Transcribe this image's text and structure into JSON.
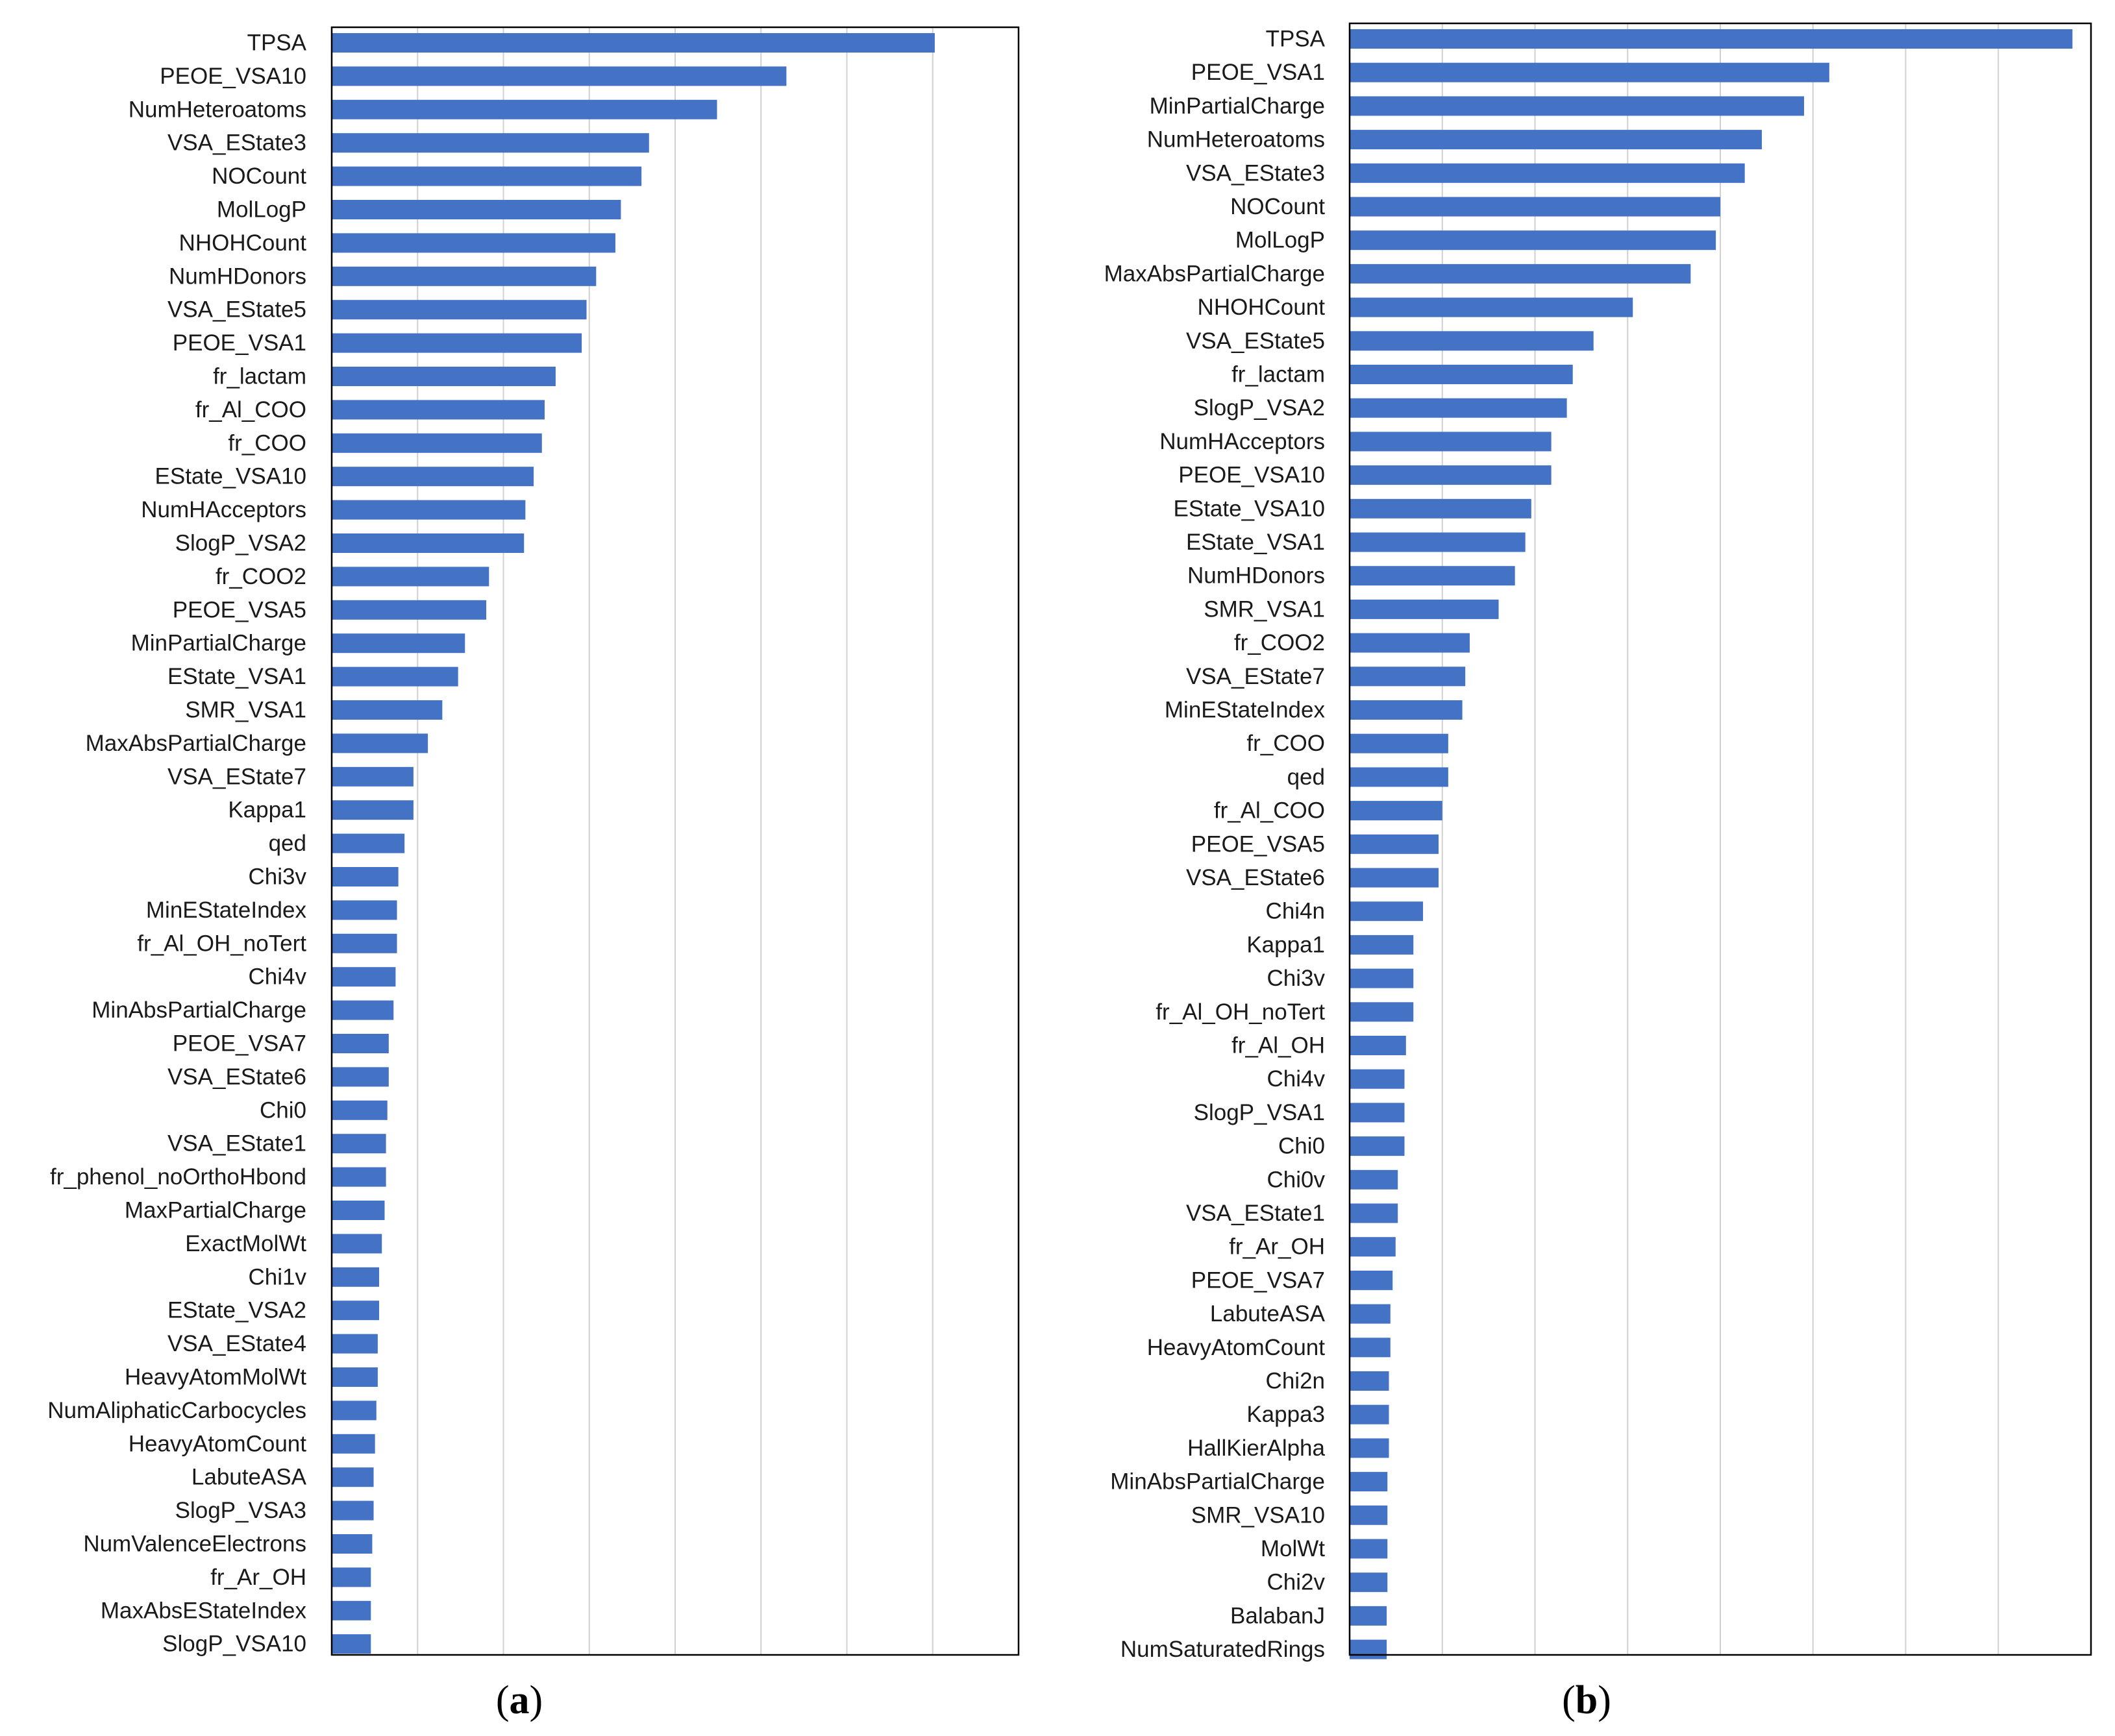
{
  "panels": [
    {
      "label_open": "(",
      "label_letter": "a",
      "label_close": ")"
    },
    {
      "label_open": "(",
      "label_letter": "b",
      "label_close": ")"
    }
  ],
  "colors": {
    "bar": "#4472c4",
    "grid": "#d0d0d0",
    "frame": "#000000"
  },
  "chart_data": [
    {
      "type": "bar",
      "orientation": "horizontal",
      "title": "",
      "xlabel": "",
      "ylabel": "",
      "xlim": [
        0,
        1
      ],
      "grid": "vertical",
      "categories": [
        "TPSA",
        "PEOE_VSA10",
        "NumHeteroatoms",
        "VSA_EState3",
        "NOCount",
        "MolLogP",
        "NHOHCount",
        "NumHDonors",
        "VSA_EState5",
        "PEOE_VSA1",
        "fr_lactam",
        "fr_Al_COO",
        "fr_COO",
        "EState_VSA10",
        "NumHAcceptors",
        "SlogP_VSA2",
        "fr_COO2",
        "PEOE_VSA5",
        "MinPartialCharge",
        "EState_VSA1",
        "SMR_VSA1",
        "MaxAbsPartialCharge",
        "VSA_EState7",
        "Kappa1",
        "qed",
        "Chi3v",
        "MinEStateIndex",
        "fr_Al_OH_noTert",
        "Chi4v",
        "MinAbsPartialCharge",
        "PEOE_VSA7",
        "VSA_EState6",
        "Chi0",
        "VSA_EState1",
        "fr_phenol_noOrthoHbond",
        "MaxPartialCharge",
        "ExactMolWt",
        "Chi1v",
        "EState_VSA2",
        "VSA_EState4",
        "HeavyAtomMolWt",
        "NumAliphaticCarbocycles",
        "HeavyAtomCount",
        "LabuteASA",
        "SlogP_VSA3",
        "NumValenceElectrons",
        "fr_Ar_OH",
        "MaxAbsEStateIndex",
        "SlogP_VSA10"
      ],
      "values": [
        0.878,
        0.662,
        0.561,
        0.462,
        0.451,
        0.421,
        0.413,
        0.385,
        0.371,
        0.364,
        0.326,
        0.31,
        0.306,
        0.294,
        0.282,
        0.28,
        0.229,
        0.225,
        0.194,
        0.184,
        0.161,
        0.14,
        0.119,
        0.119,
        0.106,
        0.097,
        0.095,
        0.095,
        0.093,
        0.09,
        0.083,
        0.083,
        0.081,
        0.079,
        0.079,
        0.077,
        0.073,
        0.069,
        0.069,
        0.067,
        0.067,
        0.065,
        0.063,
        0.061,
        0.061,
        0.059,
        0.057,
        0.057,
        0.057
      ]
    },
    {
      "type": "bar",
      "orientation": "horizontal",
      "title": "",
      "xlabel": "",
      "ylabel": "",
      "xlim": [
        0,
        1
      ],
      "grid": "vertical",
      "categories": [
        "TPSA",
        "PEOE_VSA1",
        "MinPartialCharge",
        "NumHeteroatoms",
        "VSA_EState3",
        "NOCount",
        "MolLogP",
        "MaxAbsPartialCharge",
        "NHOHCount",
        "VSA_EState5",
        "fr_lactam",
        "SlogP_VSA2",
        "NumHAcceptors",
        "PEOE_VSA10",
        "EState_VSA10",
        "EState_VSA1",
        "NumHDonors",
        "SMR_VSA1",
        "fr_COO2",
        "VSA_EState7",
        "MinEStateIndex",
        "fr_COO",
        "qed",
        "fr_Al_COO",
        "PEOE_VSA5",
        "VSA_EState6",
        "Chi4n",
        "Kappa1",
        "Chi3v",
        "fr_Al_OH_noTert",
        "fr_Al_OH",
        "Chi4v",
        "SlogP_VSA1",
        "Chi0",
        "Chi0v",
        "VSA_EState1",
        "fr_Ar_OH",
        "PEOE_VSA7",
        "LabuteASA",
        "HeavyAtomCount",
        "Chi2n",
        "Kappa3",
        "HallKierAlpha",
        "MinAbsPartialCharge",
        "SMR_VSA10",
        "MolWt",
        "Chi2v",
        "BalabanJ",
        "NumSaturatedRings"
      ],
      "values": [
        0.975,
        0.647,
        0.613,
        0.556,
        0.533,
        0.5,
        0.494,
        0.46,
        0.382,
        0.329,
        0.301,
        0.293,
        0.272,
        0.272,
        0.245,
        0.237,
        0.223,
        0.201,
        0.162,
        0.156,
        0.152,
        0.133,
        0.133,
        0.125,
        0.12,
        0.12,
        0.099,
        0.086,
        0.086,
        0.086,
        0.076,
        0.074,
        0.074,
        0.074,
        0.065,
        0.065,
        0.062,
        0.058,
        0.055,
        0.055,
        0.053,
        0.053,
        0.053,
        0.051,
        0.051,
        0.051,
        0.051,
        0.05,
        0.05
      ]
    }
  ]
}
